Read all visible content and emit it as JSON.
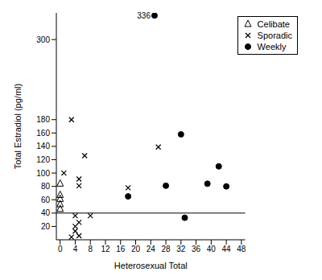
{
  "chart_data": {
    "type": "scatter",
    "x_label": "Heterosexual Total",
    "y_label": "Total Estradiol (pg/ml)",
    "xlim": [
      -1,
      49
    ],
    "xticks": [
      0,
      4,
      8,
      12,
      16,
      20,
      24,
      28,
      32,
      36,
      40,
      44,
      48
    ],
    "ylim": [
      0,
      340
    ],
    "yticks": [
      20,
      40,
      60,
      80,
      100,
      120,
      140,
      160,
      180,
      300
    ],
    "reference_y": 40,
    "annotations": [
      {
        "text": "336",
        "x": 25,
        "y": 336
      }
    ],
    "legend": "top right",
    "series": [
      {
        "name": "Celibate",
        "color": "#000000",
        "marker": "triangle",
        "x": [
          0,
          0,
          0,
          0,
          0
        ],
        "values": [
          84,
          67,
          61,
          53,
          46
        ]
      },
      {
        "name": "Sporadic",
        "color": "#000000",
        "marker": "x",
        "x": [
          3,
          1,
          6.5,
          5,
          5,
          18,
          26,
          8,
          4,
          5,
          4,
          4,
          3,
          5
        ],
        "values": [
          180,
          100,
          126,
          91,
          81,
          78,
          139,
          36,
          36,
          26,
          20,
          13,
          4,
          6
        ]
      },
      {
        "name": "Weekly",
        "color": "#000000",
        "marker": "circle",
        "x": [
          25,
          18,
          28,
          32,
          33,
          39,
          42,
          44
        ],
        "values": [
          336,
          65,
          81,
          158,
          33,
          84,
          110,
          80
        ]
      }
    ]
  }
}
